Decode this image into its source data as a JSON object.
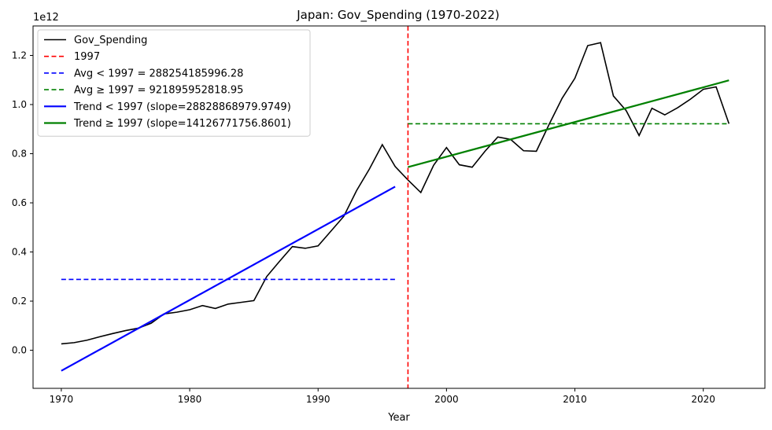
{
  "chart_data": {
    "type": "line",
    "title": "Japan: Gov_Spending (1970-2022)",
    "xlabel": "Year",
    "ylabel": "",
    "y_offset_label": "1e12",
    "xlim": [
      1967.8,
      2024.8
    ],
    "ylim": [
      -0.155,
      1.32
    ],
    "x_ticks": [
      1970,
      1980,
      1990,
      2000,
      2010,
      2020
    ],
    "y_ticks": [
      0.0,
      0.2,
      0.4,
      0.6,
      0.8,
      1.0,
      1.2
    ],
    "y_tick_labels": [
      "0.0",
      "0.2",
      "0.4",
      "0.6",
      "0.8",
      "1.0",
      "1.2"
    ],
    "grid": false,
    "legend_position": "top-left",
    "split_year": 1997,
    "series": [
      {
        "name": "Gov_Spending",
        "kind": "line",
        "color": "#000000",
        "x": [
          1970,
          1971,
          1972,
          1973,
          1974,
          1975,
          1976,
          1977,
          1978,
          1979,
          1980,
          1981,
          1982,
          1983,
          1984,
          1985,
          1986,
          1987,
          1988,
          1989,
          1990,
          1991,
          1992,
          1993,
          1994,
          1995,
          1996,
          1997,
          1998,
          1999,
          2000,
          2001,
          2002,
          2003,
          2004,
          2005,
          2006,
          2007,
          2008,
          2009,
          2010,
          2011,
          2012,
          2013,
          2014,
          2015,
          2016,
          2017,
          2018,
          2019,
          2020,
          2021,
          2022
        ],
        "values": [
          0.026,
          0.031,
          0.041,
          0.055,
          0.068,
          0.08,
          0.09,
          0.11,
          0.148,
          0.155,
          0.165,
          0.182,
          0.17,
          0.188,
          0.195,
          0.202,
          0.3,
          0.362,
          0.422,
          0.415,
          0.425,
          0.485,
          0.545,
          0.65,
          0.738,
          0.837,
          0.748,
          0.693,
          0.642,
          0.753,
          0.825,
          0.755,
          0.745,
          0.81,
          0.868,
          0.858,
          0.812,
          0.81,
          0.92,
          1.025,
          1.107,
          1.24,
          1.252,
          1.035,
          0.975,
          0.874,
          0.985,
          0.958,
          0.987,
          1.022,
          1.062,
          1.072,
          0.922
        ]
      },
      {
        "name": "1997",
        "kind": "vline",
        "color": "#ff0000",
        "dash": true,
        "x": 1997
      },
      {
        "name": "Avg < 1997 = 288254185996.28",
        "kind": "hline",
        "color": "#0000ff",
        "dash": true,
        "x": [
          1970,
          1996
        ],
        "values": [
          0.288254,
          0.288254
        ]
      },
      {
        "name": "Avg ≥ 1997 = 921895952818.95",
        "kind": "hline",
        "color": "#008000",
        "dash": true,
        "x": [
          1997,
          2022
        ],
        "values": [
          0.921896,
          0.921896
        ]
      },
      {
        "name": "Trend < 1997 (slope=28828868979.9749)",
        "kind": "trend",
        "color": "#0000ff",
        "x": [
          1970,
          1996
        ],
        "values": [
          -0.0837,
          0.6658
        ]
      },
      {
        "name": "Trend ≥ 1997 (slope=14126771756.8601)",
        "kind": "trend",
        "color": "#008000",
        "x": [
          1997,
          2022
        ],
        "values": [
          0.7453,
          1.0985
        ]
      }
    ]
  }
}
